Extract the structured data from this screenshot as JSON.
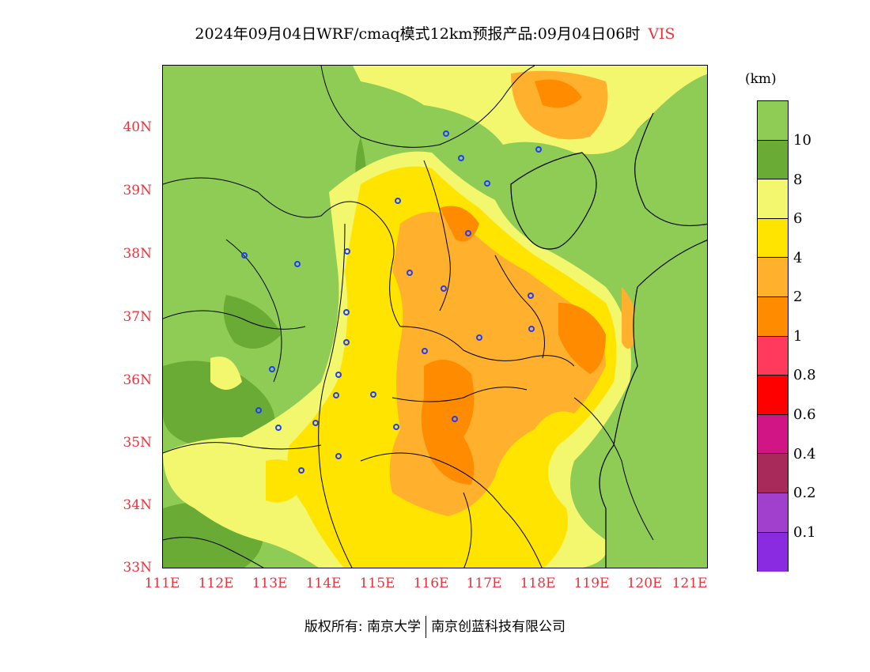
{
  "title": {
    "main": "2024年09月04日WRF/cmaq模式12km预报产品:09月04日06时",
    "variable": "VIS"
  },
  "axes": {
    "lat_labels": [
      "40N",
      "39N",
      "38N",
      "37N",
      "36N",
      "35N",
      "34N",
      "33N"
    ],
    "lon_labels": [
      "111E",
      "112E",
      "113E",
      "114E",
      "115E",
      "116E",
      "117E",
      "118E",
      "119E",
      "120E",
      "121E"
    ]
  },
  "colorbar": {
    "unit": "(km)",
    "colors": [
      "#8fcc55",
      "#6aab35",
      "#f2f76e",
      "#ffe400",
      "#ffb12d",
      "#ff8c00",
      "#ff3a5c",
      "#ff0000",
      "#d21585",
      "#a82a5a",
      "#a040cc",
      "#8a2be2"
    ],
    "labels": [
      "10",
      "8",
      "6",
      "4",
      "2",
      "1",
      "0.8",
      "0.6",
      "0.4",
      "0.2",
      "0.1"
    ]
  },
  "footer": {
    "left": "版权所有: 南京大学",
    "right": "南京创蓝科技有限公司"
  }
}
